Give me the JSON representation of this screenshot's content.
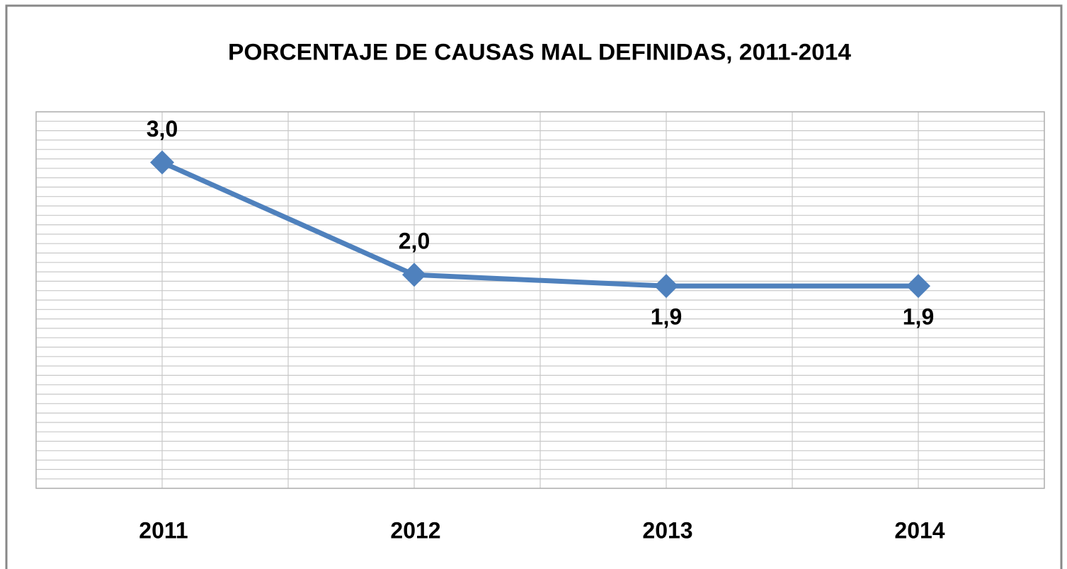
{
  "chart_data": {
    "type": "line",
    "title": "PORCENTAJE DE CAUSAS MAL DEFINIDAS, 2011-2014",
    "categories": [
      "2011",
      "2012",
      "2013",
      "2014"
    ],
    "values": [
      3.0,
      2.0,
      1.9,
      1.9
    ],
    "value_labels": [
      "3,0",
      "2,0",
      "1,9",
      "1,9"
    ],
    "color": "#4f81bd",
    "ylim": [
      0.1,
      3.45
    ]
  }
}
